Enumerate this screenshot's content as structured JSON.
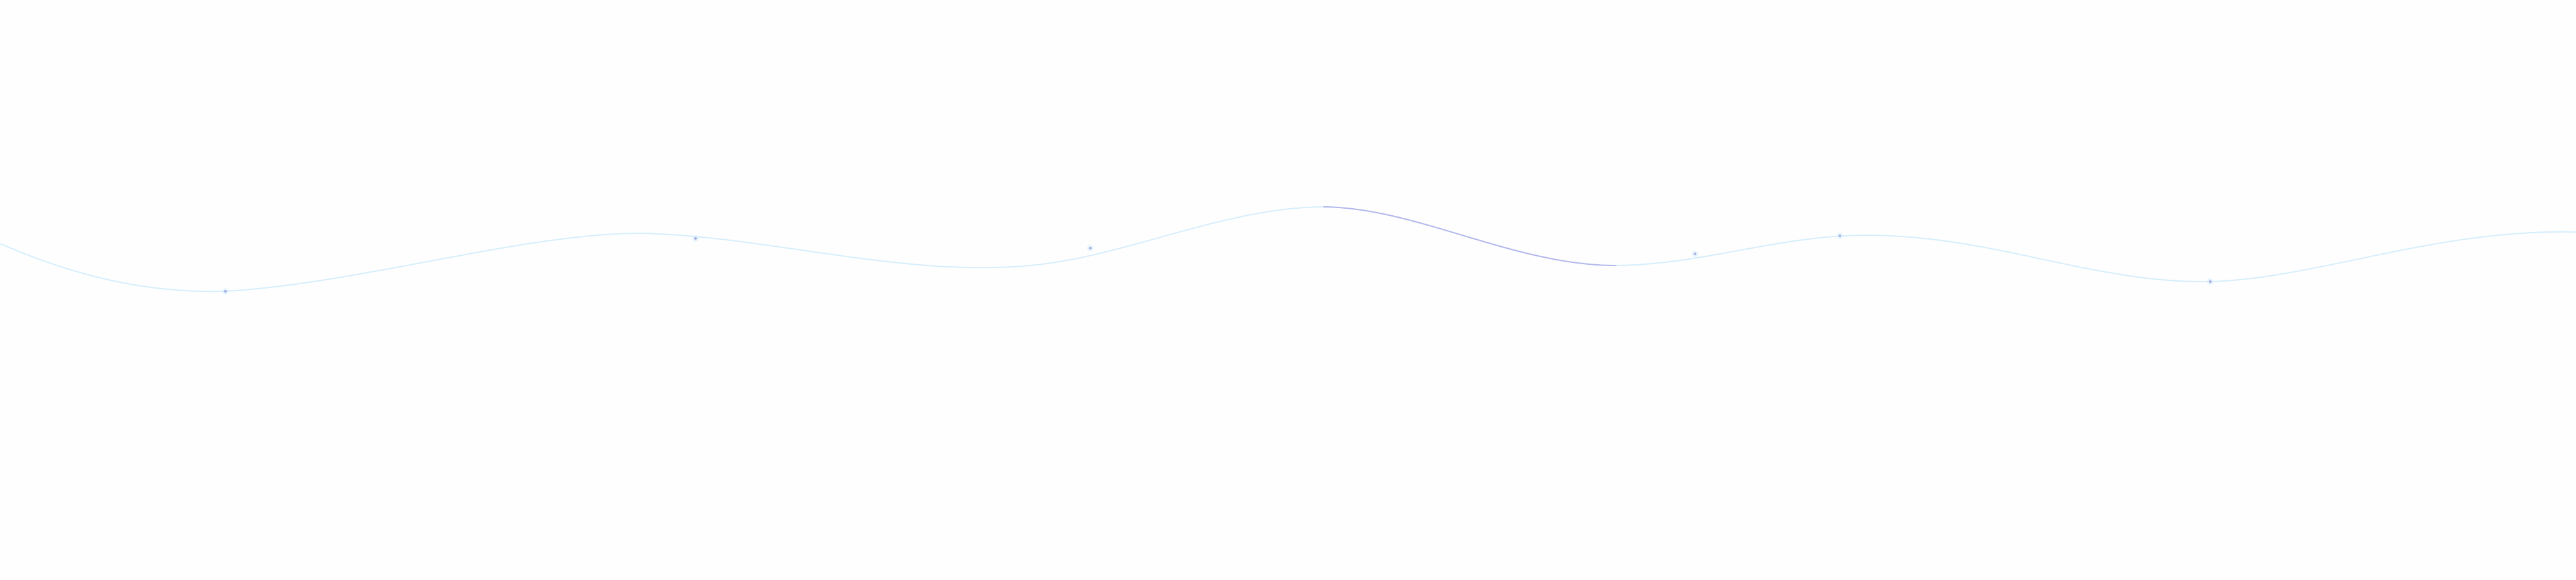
{
  "colors": {
    "background": "#fefefe",
    "wave_line": "#d6eefc",
    "wave_highlight": "#b3b8ec",
    "dot": "#a9aedf"
  },
  "wave": {
    "dot_count": 6
  }
}
